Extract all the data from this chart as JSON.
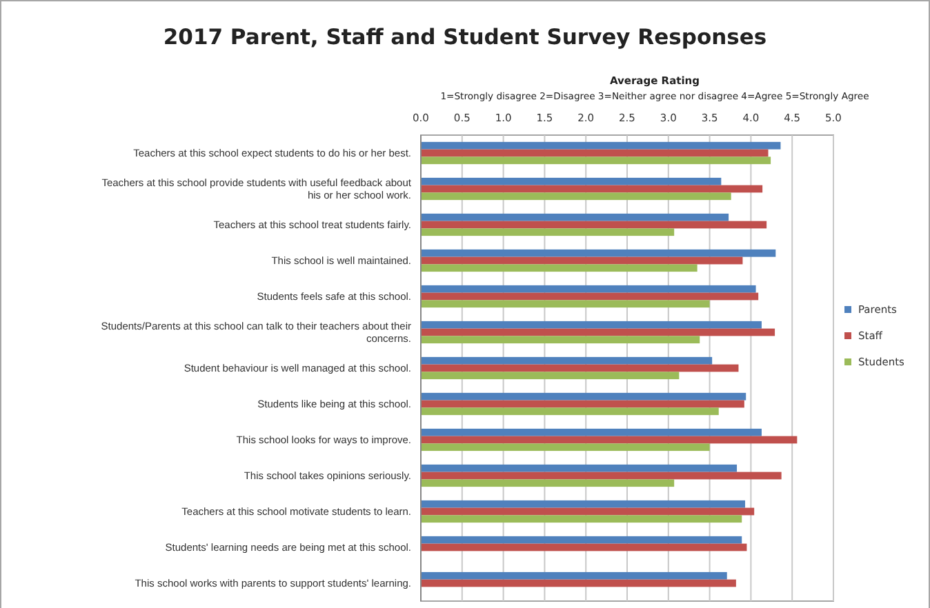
{
  "chart_data": {
    "type": "bar",
    "orientation": "horizontal",
    "title": "2017 Parent, Staff and Student Survey Responses",
    "xlabel": "Average Rating",
    "annotations": [
      "1=Strongly disagree 2=Disagree 3=Neither agree nor disagree 4=Agree 5=Strongly Agree"
    ],
    "categories": [
      "Teachers at this school expect students to do his or her best.",
      "Teachers at this school provide students with useful feedback about his or her school work.",
      "Teachers at this school treat students fairly.",
      "This school is well maintained.",
      "Students feels safe at this school.",
      "Students/Parents at this school can talk to their teachers about their concerns.",
      "Student behaviour is well managed at this school.",
      "Students like being at this school.",
      "This school looks for ways to improve.",
      "This school takes opinions seriously.",
      "Teachers at this school motivate students to learn.",
      "Students' learning needs are being met at this school.",
      "This school works with parents to support students' learning."
    ],
    "series": [
      {
        "name": "Parents",
        "color": "#4f81bd",
        "values": [
          4.36,
          3.64,
          3.73,
          4.3,
          4.06,
          4.13,
          3.53,
          3.94,
          4.13,
          3.83,
          3.93,
          3.89,
          3.71
        ]
      },
      {
        "name": "Staff",
        "color": "#c0504d",
        "values": [
          4.21,
          4.14,
          4.19,
          3.9,
          4.09,
          4.29,
          3.85,
          3.92,
          4.56,
          4.37,
          4.04,
          3.95,
          3.82
        ]
      },
      {
        "name": "Students",
        "color": "#9bbb59",
        "values": [
          4.24,
          3.76,
          3.07,
          3.35,
          3.5,
          3.38,
          3.13,
          3.61,
          3.5,
          3.07,
          3.89,
          null,
          null
        ]
      }
    ],
    "xlim": [
      0,
      5
    ],
    "xticks": [
      {
        "value": 0,
        "label": "0.0"
      },
      {
        "value": 0.5,
        "label": "0.5"
      },
      {
        "value": 1,
        "label": "1.0"
      },
      {
        "value": 1.5,
        "label": "1.5"
      },
      {
        "value": 2,
        "label": "2.0"
      },
      {
        "value": 2.5,
        "label": "2.5"
      },
      {
        "value": 3,
        "label": "3.0"
      },
      {
        "value": 3.5,
        "label": "3.5"
      },
      {
        "value": 4,
        "label": "4.0"
      },
      {
        "value": 4.5,
        "label": "4.5"
      },
      {
        "value": 5,
        "label": "5.0"
      }
    ],
    "grid": "x",
    "legend": "right"
  }
}
